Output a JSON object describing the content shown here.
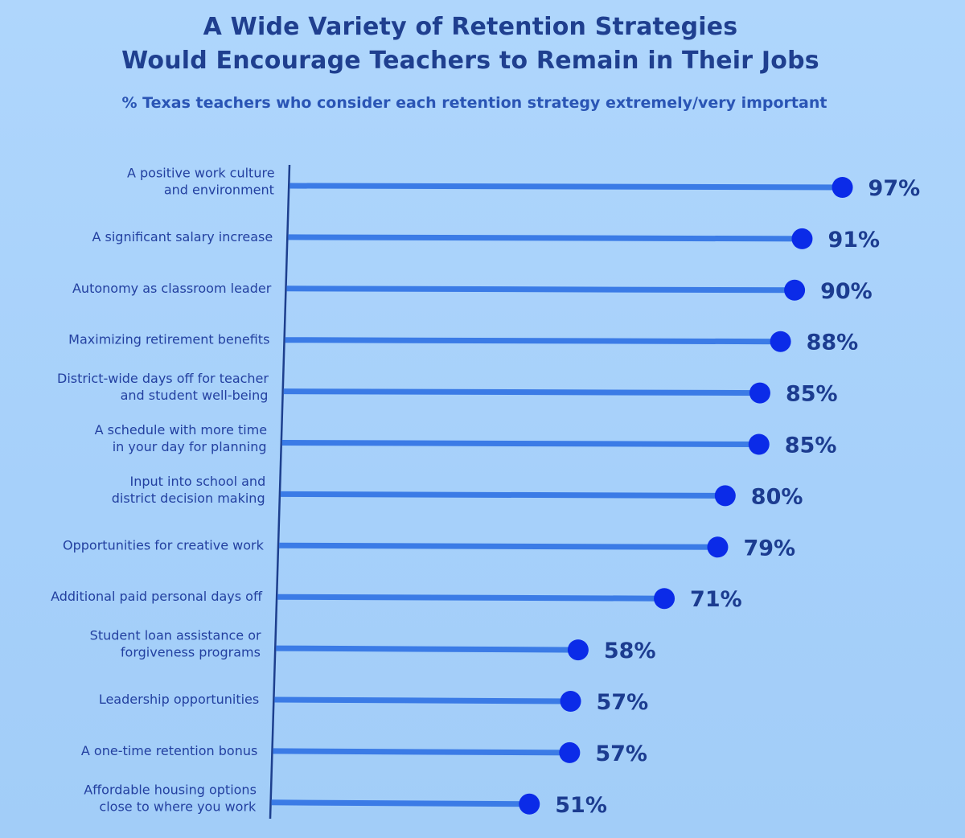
{
  "title_line_1": "A Wide Variety of Retention Strategies",
  "title_line_2": "Would Encourage Teachers to Remain in Their Jobs",
  "subtitle": "% Texas teachers who consider each retention strategy extremely/very important",
  "colors": {
    "background": "#a9d3fb",
    "bar": "#3b7be6",
    "dot": "#0b2be8",
    "axis": "#1d3f8e",
    "title": "#1f3f8f",
    "label": "#2340a0"
  },
  "chart_data": {
    "type": "bar",
    "orientation": "horizontal",
    "value_format": "percent",
    "xlim": [
      0,
      100
    ],
    "grid": false,
    "categories": [
      [
        "A positive work culture",
        "and environment"
      ],
      [
        "A significant salary increase"
      ],
      [
        "Autonomy as classroom leader"
      ],
      [
        "Maximizing retirement benefits"
      ],
      [
        "District-wide days off for teacher",
        "and student well-being"
      ],
      [
        "A schedule with more time",
        "in your day for planning"
      ],
      [
        "Input into school and",
        "district decision making"
      ],
      [
        "Opportunities for creative work"
      ],
      [
        "Additional paid personal days off"
      ],
      [
        "Student loan assistance or",
        "forgiveness programs"
      ],
      [
        "Leadership opportunities"
      ],
      [
        "A one-time retention bonus"
      ],
      [
        "Affordable housing options",
        "close to where you work"
      ]
    ],
    "values": [
      97,
      91,
      90,
      88,
      85,
      85,
      80,
      79,
      71,
      58,
      57,
      57,
      51
    ],
    "value_labels": [
      "97%",
      "91%",
      "90%",
      "88%",
      "85%",
      "85%",
      "80%",
      "79%",
      "71%",
      "58%",
      "57%",
      "57%",
      "51%"
    ]
  }
}
